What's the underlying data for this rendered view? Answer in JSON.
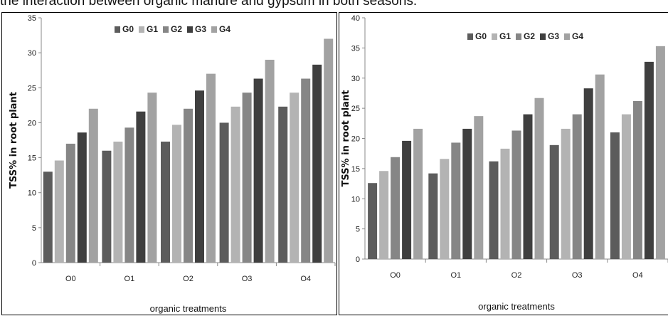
{
  "caption": "the interaction between organic manure and gypsum in both seasons.",
  "colors": {
    "G0": "#5c5c5c",
    "G1": "#b3b3b3",
    "G2": "#868686",
    "G3": "#3f3f3f",
    "G4": "#a2a2a2"
  },
  "chart_data": [
    {
      "type": "bar",
      "categories": [
        "O0",
        "O1",
        "O2",
        "O3",
        "O4"
      ],
      "series": [
        {
          "name": "G0",
          "values": [
            13,
            16,
            17.3,
            20,
            22.3
          ]
        },
        {
          "name": "G1",
          "values": [
            14.6,
            17.3,
            19.7,
            22.3,
            24.3
          ]
        },
        {
          "name": "G2",
          "values": [
            17,
            19.3,
            22,
            24.3,
            26.3
          ]
        },
        {
          "name": "G3",
          "values": [
            18.6,
            21.6,
            24.6,
            26.3,
            28.3
          ]
        },
        {
          "name": "G4",
          "values": [
            22,
            24.3,
            27,
            29,
            32
          ]
        }
      ],
      "title": "",
      "xlabel": "organic treatments",
      "ylabel": "TSS% in root plant",
      "ylim": [
        0,
        35
      ],
      "yticks": [
        0,
        5,
        10,
        15,
        20,
        25,
        30,
        35
      ],
      "legend": "top-center",
      "grid": false
    },
    {
      "type": "bar",
      "categories": [
        "O0",
        "O1",
        "O2",
        "O3",
        "O4"
      ],
      "series": [
        {
          "name": "G0",
          "values": [
            12.6,
            14.2,
            16.2,
            18.9,
            21
          ]
        },
        {
          "name": "G1",
          "values": [
            14.6,
            16.6,
            18.3,
            21.6,
            24
          ]
        },
        {
          "name": "G2",
          "values": [
            16.9,
            19.3,
            21.3,
            24,
            26.2
          ]
        },
        {
          "name": "G3",
          "values": [
            19.6,
            21.6,
            24,
            28.3,
            32.7
          ]
        },
        {
          "name": "G4",
          "values": [
            21.6,
            23.7,
            26.7,
            30.6,
            35.3
          ]
        }
      ],
      "title": "",
      "xlabel": "organic treatments",
      "ylabel": "TSS% in root plant",
      "ylim": [
        0,
        40
      ],
      "yticks": [
        0,
        5,
        10,
        15,
        20,
        25,
        30,
        35,
        40
      ],
      "legend": "top-center",
      "grid": false
    }
  ]
}
